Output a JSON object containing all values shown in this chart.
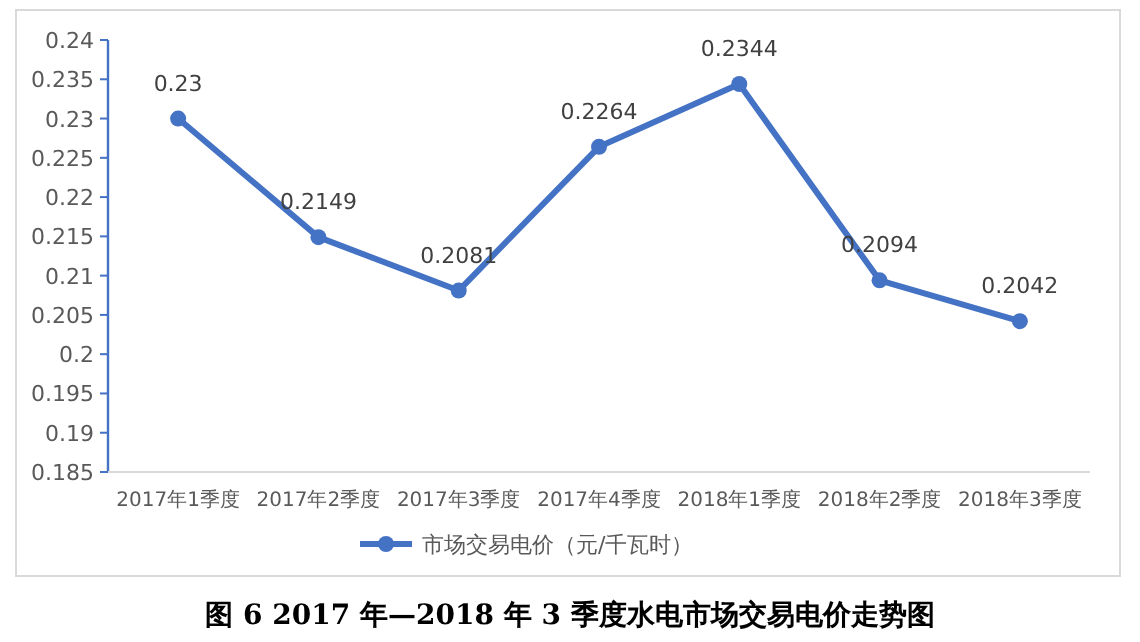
{
  "chart_data": {
    "type": "line",
    "title": "图 6 2017 年—2018 年 3 季度水电市场交易电价走势图",
    "categories": [
      "2017年1季度",
      "2017年2季度",
      "2017年3季度",
      "2017年4季度",
      "2018年1季度",
      "2018年2季度",
      "2018年3季度"
    ],
    "series": [
      {
        "name": "市场交易电价（元/千瓦时）",
        "color": "#4472c4",
        "values": [
          0.23,
          0.2149,
          0.2081,
          0.2264,
          0.2344,
          0.2094,
          0.2042
        ]
      }
    ],
    "ylim": [
      0.185,
      0.24
    ],
    "yticks": [
      0.185,
      0.19,
      0.195,
      0.2,
      0.205,
      0.21,
      0.215,
      0.22,
      0.225,
      0.23,
      0.235,
      0.24
    ],
    "data_labels": true,
    "legend": "bottom",
    "marker": "circle",
    "line_style": "solid",
    "grid": false
  }
}
